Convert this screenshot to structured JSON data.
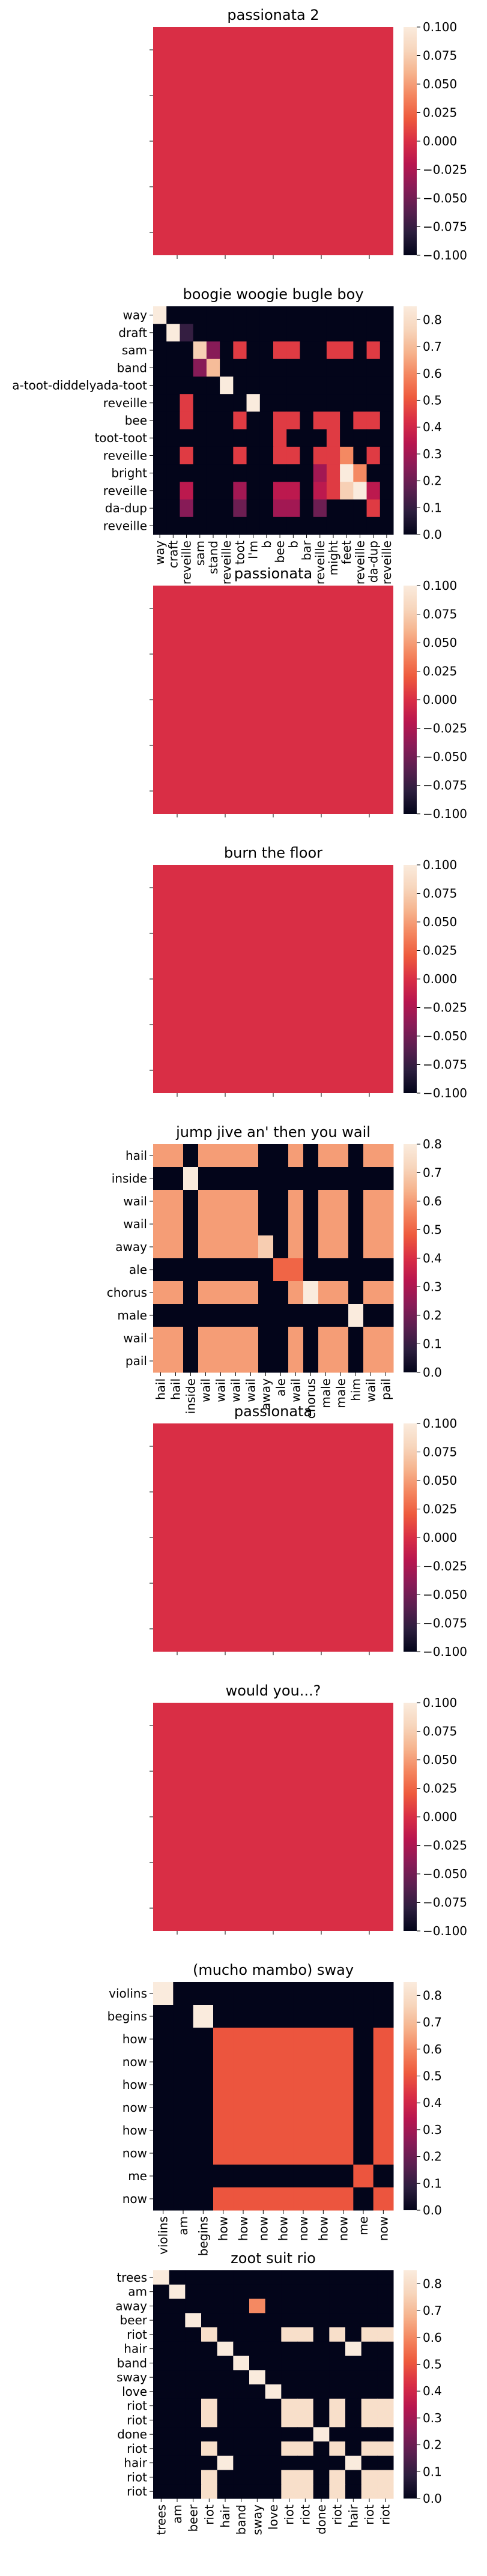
{
  "chart_data": [
    {
      "type": "heatmap",
      "title": "passionata 2",
      "rows": [],
      "cols": [],
      "values": [],
      "fill_value": 0,
      "colorbar": {
        "vmin": -0.1,
        "vmax": 0.1,
        "ticks": [
          "0.100",
          "0.075",
          "0.050",
          "0.025",
          "0.000",
          "−0.025",
          "−0.050",
          "−0.075",
          "−0.100"
        ]
      }
    },
    {
      "type": "heatmap",
      "title": "boogie woogie bugle boy",
      "rows": [
        "way",
        "draft",
        "sam",
        "band",
        "a-toot-diddelyada-toot",
        "reveille",
        "bee",
        "toot-toot",
        "reveille",
        "bright",
        "reveille",
        "da-dup",
        "reveille"
      ],
      "cols": [
        "way",
        "craft",
        "reveille",
        "sam",
        "stand",
        "reveille",
        "toot",
        "I'm",
        "b",
        "bee",
        "b",
        "bar",
        "reveille",
        "might",
        "feet",
        "reveille",
        "da-dup",
        "reveille"
      ],
      "values": [
        [
          0.85,
          0,
          0,
          0,
          0,
          0,
          0,
          0,
          0,
          0,
          0,
          0,
          0,
          0,
          0,
          0,
          0,
          0
        ],
        [
          0,
          0.85,
          0.1,
          0,
          0,
          0,
          0,
          0,
          0,
          0,
          0,
          0,
          0,
          0,
          0,
          0,
          0,
          0
        ],
        [
          0,
          0,
          0,
          0.75,
          0.25,
          0,
          0.45,
          0,
          0,
          0.45,
          0.45,
          0,
          0,
          0.45,
          0.45,
          0,
          0.45,
          0
        ],
        [
          0,
          0,
          0,
          0.25,
          0.7,
          0,
          0,
          0,
          0,
          0,
          0,
          0,
          0,
          0,
          0,
          0,
          0,
          0
        ],
        [
          0,
          0,
          0,
          0,
          0,
          0.85,
          0,
          0,
          0,
          0,
          0,
          0,
          0,
          0,
          0,
          0,
          0,
          0
        ],
        [
          0,
          0,
          0.45,
          0,
          0,
          0,
          0,
          0.85,
          0,
          0,
          0,
          0,
          0,
          0,
          0,
          0,
          0,
          0
        ],
        [
          0,
          0,
          0.45,
          0,
          0,
          0,
          0.45,
          0,
          0,
          0.45,
          0.45,
          0,
          0.45,
          0.45,
          0,
          0.45,
          0.45,
          0
        ],
        [
          0,
          0,
          0,
          0,
          0,
          0,
          0,
          0,
          0,
          0.45,
          0,
          0,
          0,
          0.45,
          0,
          0,
          0,
          0
        ],
        [
          0,
          0,
          0.45,
          0,
          0,
          0,
          0.45,
          0,
          0,
          0.45,
          0.45,
          0,
          0.45,
          0.45,
          0.6,
          0,
          0.45,
          0
        ],
        [
          0,
          0,
          0,
          0,
          0,
          0,
          0,
          0,
          0,
          0,
          0,
          0,
          0.3,
          0.45,
          0.85,
          0.6,
          0,
          0
        ],
        [
          0,
          0,
          0.35,
          0,
          0,
          0,
          0.3,
          0,
          0,
          0.35,
          0.35,
          0,
          0.35,
          0.45,
          0.75,
          0.85,
          0.35,
          0
        ],
        [
          0,
          0,
          0.25,
          0,
          0,
          0,
          0.2,
          0,
          0,
          0.3,
          0.3,
          0,
          0.2,
          0,
          0,
          0,
          0.45,
          0
        ],
        [
          0,
          0,
          0,
          0,
          0,
          0,
          0,
          0,
          0,
          0,
          0,
          0,
          0,
          0,
          0,
          0,
          0,
          0
        ]
      ],
      "colorbar": {
        "vmin": 0.0,
        "vmax": 0.85,
        "ticks": [
          "0.8",
          "0.7",
          "0.6",
          "0.5",
          "0.4",
          "0.3",
          "0.2",
          "0.1",
          "0.0"
        ]
      }
    },
    {
      "type": "heatmap",
      "title": "passionata",
      "rows": [],
      "cols": [],
      "values": [],
      "fill_value": 0,
      "colorbar": {
        "vmin": -0.1,
        "vmax": 0.1,
        "ticks": [
          "0.100",
          "0.075",
          "0.050",
          "0.025",
          "0.000",
          "−0.025",
          "−0.050",
          "−0.075",
          "−0.100"
        ]
      }
    },
    {
      "type": "heatmap",
      "title": "burn the floor",
      "rows": [],
      "cols": [],
      "values": [],
      "fill_value": 0,
      "colorbar": {
        "vmin": -0.1,
        "vmax": 0.1,
        "ticks": [
          "0.100",
          "0.075",
          "0.050",
          "0.025",
          "0.000",
          "−0.025",
          "−0.050",
          "−0.075",
          "−0.100"
        ]
      }
    },
    {
      "type": "heatmap",
      "title": "jump jive an' then you wail",
      "rows": [
        "hail",
        "inside",
        "wail",
        "wail",
        "away",
        "ale",
        "chorus",
        "male",
        "wail",
        "pail"
      ],
      "cols": [
        "hail",
        "hail",
        "inside",
        "wail",
        "wail",
        "wail",
        "wail",
        "away",
        "ale",
        "wail",
        "chorus",
        "male",
        "male",
        "him",
        "wail",
        "pail"
      ],
      "values": [
        [
          0.6,
          0.6,
          0,
          0.6,
          0.6,
          0.6,
          0.6,
          0,
          0,
          0.6,
          0,
          0.6,
          0.6,
          0,
          0.6,
          0.6
        ],
        [
          0,
          0,
          0.8,
          0,
          0,
          0,
          0,
          0,
          0,
          0,
          0,
          0,
          0,
          0,
          0,
          0
        ],
        [
          0.6,
          0.6,
          0,
          0.6,
          0.6,
          0.6,
          0.6,
          0,
          0,
          0.6,
          0,
          0.6,
          0.6,
          0,
          0.6,
          0.6
        ],
        [
          0.6,
          0.6,
          0,
          0.6,
          0.6,
          0.6,
          0.6,
          0,
          0,
          0.6,
          0,
          0.6,
          0.6,
          0,
          0.6,
          0.6
        ],
        [
          0.6,
          0.6,
          0,
          0.6,
          0.6,
          0.6,
          0.6,
          0.7,
          0,
          0.6,
          0,
          0.6,
          0.6,
          0,
          0.6,
          0.6
        ],
        [
          0,
          0,
          0,
          0,
          0,
          0,
          0,
          0,
          0.5,
          0.5,
          0,
          0,
          0,
          0,
          0,
          0
        ],
        [
          0.6,
          0.6,
          0,
          0.6,
          0.6,
          0.6,
          0.6,
          0,
          0,
          0.6,
          0.8,
          0.6,
          0.6,
          0,
          0.6,
          0.6
        ],
        [
          0,
          0,
          0,
          0,
          0,
          0,
          0,
          0,
          0,
          0,
          0,
          0,
          0,
          0.8,
          0,
          0
        ],
        [
          0.6,
          0.6,
          0,
          0.6,
          0.6,
          0.6,
          0.6,
          0,
          0,
          0.6,
          0,
          0.6,
          0.6,
          0,
          0.6,
          0.6
        ],
        [
          0.6,
          0.6,
          0,
          0.6,
          0.6,
          0.6,
          0.6,
          0,
          0,
          0.6,
          0,
          0.6,
          0.6,
          0,
          0.6,
          0.6
        ]
      ],
      "colorbar": {
        "vmin": 0.0,
        "vmax": 0.8,
        "ticks": [
          "0.8",
          "0.7",
          "0.6",
          "0.5",
          "0.4",
          "0.3",
          "0.2",
          "0.1",
          "0.0"
        ]
      }
    },
    {
      "type": "heatmap",
      "title": "passionata",
      "rows": [],
      "cols": [],
      "values": [],
      "fill_value": 0,
      "colorbar": {
        "vmin": -0.1,
        "vmax": 0.1,
        "ticks": [
          "0.100",
          "0.075",
          "0.050",
          "0.025",
          "0.000",
          "−0.025",
          "−0.050",
          "−0.075",
          "−0.100"
        ]
      }
    },
    {
      "type": "heatmap",
      "title": "would you...?",
      "rows": [],
      "cols": [],
      "values": [],
      "fill_value": 0,
      "colorbar": {
        "vmin": -0.1,
        "vmax": 0.1,
        "ticks": [
          "0.100",
          "0.075",
          "0.050",
          "0.025",
          "0.000",
          "−0.025",
          "−0.050",
          "−0.075",
          "−0.100"
        ]
      }
    },
    {
      "type": "heatmap",
      "title": "(mucho mambo) sway",
      "rows": [
        "violins",
        "begins",
        "how",
        "now",
        "how",
        "now",
        "how",
        "now",
        "me",
        "now"
      ],
      "cols": [
        "violins",
        "am",
        "begins",
        "how",
        "how",
        "now",
        "how",
        "now",
        "how",
        "now",
        "me",
        "now"
      ],
      "values": [
        [
          0.85,
          0,
          0,
          0,
          0,
          0,
          0,
          0,
          0,
          0,
          0,
          0
        ],
        [
          0,
          0,
          0.85,
          0,
          0,
          0,
          0,
          0,
          0,
          0,
          0,
          0
        ],
        [
          0,
          0,
          0,
          0.5,
          0.5,
          0.5,
          0.5,
          0.5,
          0.5,
          0.5,
          0,
          0.5
        ],
        [
          0,
          0,
          0,
          0.5,
          0.5,
          0.5,
          0.5,
          0.5,
          0.5,
          0.5,
          0,
          0.5
        ],
        [
          0,
          0,
          0,
          0.5,
          0.5,
          0.5,
          0.5,
          0.5,
          0.5,
          0.5,
          0,
          0.5
        ],
        [
          0,
          0,
          0,
          0.5,
          0.5,
          0.5,
          0.5,
          0.5,
          0.5,
          0.5,
          0,
          0.5
        ],
        [
          0,
          0,
          0,
          0.5,
          0.5,
          0.5,
          0.5,
          0.5,
          0.5,
          0.5,
          0,
          0.5
        ],
        [
          0,
          0,
          0,
          0.5,
          0.5,
          0.5,
          0.5,
          0.5,
          0.5,
          0.5,
          0,
          0.5
        ],
        [
          0,
          0,
          0,
          0,
          0,
          0,
          0,
          0,
          0,
          0,
          0.5,
          0
        ],
        [
          0,
          0,
          0,
          0.5,
          0.5,
          0.5,
          0.5,
          0.5,
          0.5,
          0.5,
          0,
          0.5
        ]
      ],
      "colorbar": {
        "vmin": 0.0,
        "vmax": 0.85,
        "ticks": [
          "0.8",
          "0.7",
          "0.6",
          "0.5",
          "0.4",
          "0.3",
          "0.2",
          "0.1",
          "0.0"
        ]
      }
    },
    {
      "type": "heatmap",
      "title": "zoot suit rio",
      "rows": [
        "trees",
        "am",
        "away",
        "beer",
        "riot",
        "hair",
        "band",
        "sway",
        "love",
        "riot",
        "riot",
        "done",
        "riot",
        "hair",
        "riot",
        "riot"
      ],
      "cols": [
        "trees",
        "am",
        "beer",
        "riot",
        "hair",
        "band",
        "sway",
        "love",
        "riot",
        "riot",
        "done",
        "riot",
        "hair",
        "riot",
        "riot"
      ],
      "values": [
        [
          0.85,
          0,
          0,
          0,
          0,
          0,
          0,
          0,
          0,
          0,
          0,
          0,
          0,
          0,
          0
        ],
        [
          0,
          0.85,
          0,
          0,
          0,
          0,
          0,
          0,
          0,
          0,
          0,
          0,
          0,
          0,
          0
        ],
        [
          0,
          0,
          0,
          0,
          0,
          0,
          0.6,
          0,
          0,
          0,
          0,
          0,
          0,
          0,
          0
        ],
        [
          0,
          0,
          0.85,
          0,
          0,
          0,
          0,
          0,
          0,
          0,
          0,
          0,
          0,
          0,
          0
        ],
        [
          0,
          0,
          0,
          0.8,
          0,
          0,
          0,
          0,
          0.8,
          0.8,
          0,
          0.8,
          0,
          0.8,
          0.8
        ],
        [
          0,
          0,
          0,
          0,
          0.85,
          0,
          0,
          0,
          0,
          0,
          0,
          0,
          0.85,
          0,
          0
        ],
        [
          0,
          0,
          0,
          0,
          0,
          0.85,
          0,
          0,
          0,
          0,
          0,
          0,
          0,
          0,
          0
        ],
        [
          0,
          0,
          0,
          0,
          0,
          0,
          0.85,
          0,
          0,
          0,
          0,
          0,
          0,
          0,
          0
        ],
        [
          0,
          0,
          0,
          0,
          0,
          0,
          0,
          0.85,
          0,
          0,
          0,
          0,
          0,
          0,
          0
        ],
        [
          0,
          0,
          0,
          0.8,
          0,
          0,
          0,
          0,
          0.8,
          0.8,
          0,
          0.8,
          0,
          0.8,
          0.8
        ],
        [
          0,
          0,
          0,
          0.8,
          0,
          0,
          0,
          0,
          0.8,
          0.8,
          0,
          0.8,
          0,
          0.8,
          0.8
        ],
        [
          0,
          0,
          0,
          0,
          0,
          0,
          0,
          0,
          0,
          0,
          0.85,
          0,
          0,
          0,
          0
        ],
        [
          0,
          0,
          0,
          0.8,
          0,
          0,
          0,
          0,
          0.8,
          0.8,
          0,
          0.8,
          0,
          0.8,
          0.8
        ],
        [
          0,
          0,
          0,
          0,
          0.85,
          0,
          0,
          0,
          0,
          0,
          0,
          0,
          0.85,
          0,
          0
        ],
        [
          0,
          0,
          0,
          0.8,
          0,
          0,
          0,
          0,
          0.8,
          0.8,
          0,
          0.8,
          0,
          0.8,
          0.8
        ],
        [
          0,
          0,
          0,
          0.8,
          0,
          0,
          0,
          0,
          0.8,
          0.8,
          0,
          0.8,
          0,
          0.8,
          0.8
        ]
      ],
      "colorbar": {
        "vmin": 0.0,
        "vmax": 0.85,
        "ticks": [
          "0.8",
          "0.7",
          "0.6",
          "0.5",
          "0.4",
          "0.3",
          "0.2",
          "0.1",
          "0.0"
        ]
      }
    }
  ],
  "colormap": [
    "#03051a",
    "#2c1e3e",
    "#5b1f50",
    "#8a1b57",
    "#b8164f",
    "#d92e45",
    "#ee5a3d",
    "#f4865f",
    "#f6b48e",
    "#f7d6bd",
    "#faebdd"
  ]
}
